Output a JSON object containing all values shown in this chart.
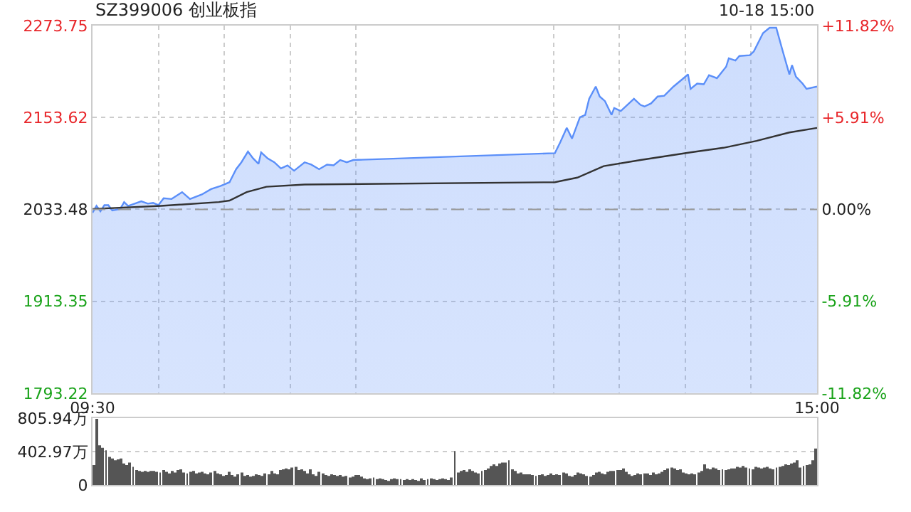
{
  "chart_data": [
    {
      "type": "area",
      "title": "SZ399006 创业板指",
      "annotations": [
        "10-18 15:00"
      ],
      "xlim": [
        9.5,
        15
      ],
      "xticks": [
        {
          "value": 9.5,
          "label": "09:30"
        },
        {
          "value": 10,
          "label": null
        },
        {
          "value": 10.5,
          "label": null
        },
        {
          "value": 11,
          "label": null
        },
        {
          "value": 11.5,
          "label": null
        },
        {
          "value": 13,
          "label": null
        },
        {
          "value": 13.5,
          "label": null
        },
        {
          "value": 14,
          "label": null
        },
        {
          "value": 14.5,
          "label": null
        },
        {
          "value": 15,
          "label": "15:00"
        }
      ],
      "ylim": [
        1793.22,
        2273.75
      ],
      "yticks": [
        1793.22,
        1913.35,
        2033.48,
        2153.62,
        2273.75
      ],
      "y2lim": [
        -11.82,
        11.82
      ],
      "y2ticks": [
        {
          "value": -11.82,
          "label": "-11.82%"
        },
        {
          "value": -5.91,
          "label": "-5.91%"
        },
        {
          "value": 0,
          "label": "0.00%"
        },
        {
          "value": 5.91,
          "label": "+5.91%"
        },
        {
          "value": 11.82,
          "label": "+11.82%"
        }
      ],
      "grid": true,
      "marker": "none",
      "ref_lines": [
        {
          "axis": "y",
          "value": 2033.48,
          "color": "#999999",
          "line_style": "dashed"
        }
      ],
      "series": [
        {
          "type": "area",
          "color": "#5b8ff9",
          "x": [
            9.5,
            9.53,
            9.56,
            9.59,
            9.62,
            9.65,
            9.71,
            9.74,
            9.77,
            9.82,
            9.87,
            9.92,
            9.96,
            10.0,
            10.04,
            10.1,
            10.18,
            10.24,
            10.33,
            10.4,
            10.47,
            10.5,
            10.54,
            10.59,
            10.63,
            10.68,
            10.72,
            10.76,
            10.78,
            10.83,
            10.88,
            10.93,
            10.98,
            11.03,
            11.11,
            11.16,
            11.22,
            11.28,
            11.33,
            11.38,
            11.43,
            11.48,
            13.01,
            13.05,
            13.1,
            13.14,
            13.2,
            13.24,
            13.27,
            13.32,
            13.35,
            13.39,
            13.44,
            13.46,
            13.51,
            13.61,
            13.66,
            13.69,
            13.74,
            13.79,
            13.84,
            13.91,
            13.98,
            14.02,
            14.04,
            14.09,
            14.14,
            14.18,
            14.24,
            14.31,
            14.33,
            14.38,
            14.41,
            14.49,
            14.52,
            14.59,
            14.64,
            14.69,
            14.74,
            14.79,
            14.81,
            14.84,
            14.89,
            14.92,
            15
          ],
          "values": [
            2029,
            2038,
            2031,
            2039,
            2039,
            2032,
            2034,
            2043,
            2038,
            2041,
            2044,
            2041,
            2042,
            2039,
            2048,
            2047,
            2056,
            2047,
            2053,
            2060,
            2064,
            2066,
            2069,
            2086,
            2095,
            2109,
            2100,
            2093,
            2108,
            2100,
            2095,
            2087,
            2091,
            2084,
            2095,
            2092,
            2086,
            2092,
            2091,
            2098,
            2095,
            2098,
            2107,
            2121,
            2140,
            2126,
            2154,
            2157,
            2178,
            2194,
            2181,
            2175,
            2157,
            2166,
            2162,
            2178,
            2170,
            2168,
            2172,
            2181,
            2182,
            2194,
            2204,
            2210,
            2191,
            2198,
            2197,
            2209,
            2205,
            2220,
            2231,
            2228,
            2234,
            2235,
            2240,
            2264,
            2271,
            2271,
            2240,
            2210,
            2222,
            2207,
            2198,
            2191,
            2194
          ]
        },
        {
          "type": "line",
          "color": "#333333",
          "x": [
            9.5,
            10.02,
            10.46,
            10.54,
            10.67,
            10.82,
            11.11,
            13.01,
            13.18,
            13.38,
            13.66,
            14.04,
            14.29,
            14.54,
            14.79,
            15
          ],
          "values": [
            2034,
            2038,
            2043,
            2045,
            2056,
            2063,
            2066,
            2069,
            2075,
            2090,
            2098,
            2108,
            2114,
            2123,
            2134,
            2140
          ]
        }
      ]
    },
    {
      "type": "bar",
      "tick_labels": "y",
      "grid": "y",
      "color": "#555555",
      "categories": [
        null,
        null,
        null,
        null,
        null,
        null,
        null,
        null,
        null,
        null,
        null,
        null,
        null,
        null,
        null,
        null,
        null,
        null,
        null,
        null,
        null,
        null,
        null,
        null,
        null,
        null,
        null,
        null,
        null,
        null,
        null,
        null,
        null,
        null,
        null,
        null,
        null,
        null,
        null,
        null,
        null,
        null,
        null,
        null,
        null,
        null,
        null,
        null,
        null,
        null,
        null,
        null,
        null,
        null,
        null,
        null,
        null,
        null,
        null,
        null,
        null,
        null,
        null,
        null,
        null,
        null,
        null,
        null,
        null,
        null,
        null,
        null,
        null,
        null,
        null,
        null,
        null,
        null,
        null,
        null,
        null,
        null,
        null,
        null,
        null,
        null,
        null,
        null,
        null,
        null,
        null,
        null,
        null,
        null,
        null,
        null,
        null,
        null,
        null,
        null,
        null,
        null,
        null,
        null,
        null,
        null,
        null,
        null,
        null,
        null,
        null,
        null,
        null,
        null,
        null,
        null,
        null,
        null,
        null,
        null,
        null,
        null,
        null,
        null,
        null,
        null,
        null,
        null,
        null,
        null,
        null,
        null,
        null,
        null,
        null,
        null,
        null,
        null,
        null,
        null,
        null,
        null,
        null,
        null,
        null,
        null,
        null,
        null,
        null,
        null,
        null,
        null,
        null,
        null,
        null,
        null,
        null,
        null,
        null,
        null,
        null,
        null,
        null,
        null,
        null,
        null,
        null,
        null,
        null,
        null,
        null,
        null,
        null,
        null,
        null,
        null,
        null,
        null,
        null,
        null,
        null,
        null,
        null,
        null,
        null,
        null,
        null,
        null,
        null,
        null,
        null,
        null,
        null,
        null,
        null,
        null,
        null,
        null,
        null,
        null,
        null,
        null,
        null,
        null,
        null,
        null,
        null,
        null,
        null,
        null,
        null,
        null,
        null,
        null,
        null,
        null,
        null,
        null,
        null,
        null,
        null,
        null,
        null,
        null,
        null,
        null,
        null,
        null,
        null,
        null,
        null,
        null,
        null,
        null,
        null,
        null,
        null,
        null,
        null,
        null,
        null
      ],
      "ylim": [
        0,
        805.94
      ],
      "yticks": [
        0,
        {
          "value": 402.97,
          "label": "402.97万"
        },
        {
          "value": 805.94,
          "label": "805.94万"
        }
      ],
      "values": [
        240,
        800,
        480,
        450,
        420,
        340,
        320,
        300,
        310,
        320,
        260,
        240,
        270,
        220,
        180,
        170,
        160,
        170,
        160,
        170,
        170,
        160,
        150,
        180,
        160,
        140,
        170,
        150,
        180,
        190,
        150,
        140,
        160,
        170,
        140,
        150,
        160,
        140,
        130,
        150,
        170,
        140,
        130,
        110,
        120,
        160,
        120,
        100,
        130,
        150,
        110,
        120,
        100,
        110,
        130,
        120,
        110,
        140,
        130,
        170,
        140,
        130,
        180,
        190,
        200,
        190,
        210,
        220,
        180,
        190,
        170,
        140,
        190,
        130,
        110,
        160,
        140,
        120,
        110,
        130,
        120,
        110,
        120,
        100,
        110,
        90,
        100,
        120,
        120,
        100,
        80,
        70,
        80,
        90,
        70,
        80,
        70,
        60,
        50,
        70,
        80,
        70,
        70,
        60,
        70,
        60,
        70,
        60,
        50,
        80,
        60,
        70,
        80,
        70,
        60,
        70,
        80,
        70,
        60,
        90,
        410,
        150,
        170,
        180,
        160,
        190,
        170,
        150,
        140,
        170,
        180,
        200,
        230,
        250,
        230,
        260,
        270,
        270,
        300,
        190,
        170,
        140,
        150,
        130,
        130,
        130,
        120,
        110,
        120,
        130,
        110,
        120,
        140,
        120,
        130,
        120,
        150,
        140,
        110,
        100,
        120,
        150,
        140,
        130,
        110,
        100,
        120,
        150,
        160,
        140,
        130,
        160,
        170,
        170,
        180,
        180,
        200,
        160,
        130,
        110,
        120,
        140,
        130,
        140,
        140,
        120,
        150,
        130,
        140,
        160,
        180,
        200,
        210,
        200,
        180,
        190,
        150,
        140,
        130,
        140,
        130,
        150,
        170,
        250,
        200,
        190,
        210,
        200,
        180,
        190,
        180,
        190,
        200,
        200,
        220,
        210,
        230,
        210,
        200,
        190,
        220,
        210,
        200,
        210,
        220,
        200,
        190,
        210,
        220,
        230,
        250,
        240,
        260,
        270,
        300,
        210,
        230,
        240,
        250,
        300,
        440
      ]
    }
  ]
}
